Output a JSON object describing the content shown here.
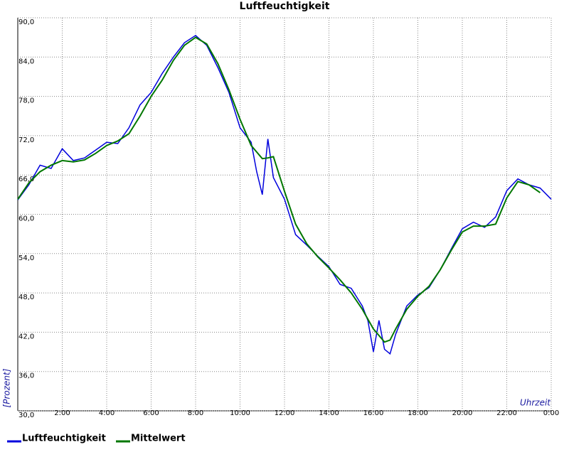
{
  "chart_data": {
    "type": "line",
    "title": "Luftfeuchtigkeit",
    "y_label": "[Prozent]",
    "x_label": "Uhrzeit",
    "xlim": [
      0,
      24
    ],
    "ylim": [
      30,
      90
    ],
    "xticks": [
      {
        "value": 2,
        "label": "2:00"
      },
      {
        "value": 4,
        "label": "4:00"
      },
      {
        "value": 6,
        "label": "6:00"
      },
      {
        "value": 8,
        "label": "8:00"
      },
      {
        "value": 10,
        "label": "10:00"
      },
      {
        "value": 12,
        "label": "12:00"
      },
      {
        "value": 14,
        "label": "14:00"
      },
      {
        "value": 16,
        "label": "16:00"
      },
      {
        "value": 18,
        "label": "18:00"
      },
      {
        "value": 20,
        "label": "20:00"
      },
      {
        "value": 22,
        "label": "22:00"
      },
      {
        "value": 24,
        "label": "0:00"
      }
    ],
    "yticks": [
      {
        "value": 30,
        "label": "30,0"
      },
      {
        "value": 36,
        "label": "36,0"
      },
      {
        "value": 42,
        "label": "42,0"
      },
      {
        "value": 48,
        "label": "48,0"
      },
      {
        "value": 54,
        "label": "54,0"
      },
      {
        "value": 60,
        "label": "60,0"
      },
      {
        "value": 66,
        "label": "66,0"
      },
      {
        "value": 72,
        "label": "72,0"
      },
      {
        "value": 78,
        "label": "78,0"
      },
      {
        "value": 84,
        "label": "84,0"
      },
      {
        "value": 90,
        "label": "90,0"
      }
    ],
    "grid": true,
    "x": [
      0,
      0.5,
      1,
      1.5,
      2,
      2.5,
      3,
      3.5,
      4,
      4.5,
      5,
      5.5,
      6,
      6.5,
      7,
      7.5,
      8,
      8.5,
      9,
      9.5,
      10,
      10.5,
      10.75,
      11,
      11.25,
      11.5,
      12,
      12.5,
      13,
      13.5,
      14,
      14.5,
      15,
      15.5,
      15.75,
      16,
      16.25,
      16.5,
      16.75,
      17,
      17.5,
      18,
      18.5,
      19,
      19.5,
      20,
      20.5,
      21,
      21.5,
      22,
      22.5,
      23,
      23.5,
      24
    ],
    "series": [
      {
        "name": "Luftfeuchtigkeit",
        "color": "#0000dd",
        "values": [
          62.2,
          64.5,
          67.5,
          67,
          70,
          68.2,
          68.6,
          69.8,
          71,
          70.8,
          73.2,
          76.7,
          78.6,
          81.5,
          84,
          86.2,
          87.3,
          85.8,
          82.4,
          78.6,
          73.2,
          71,
          66.5,
          63,
          71.5,
          65.6,
          62.3,
          56.9,
          55.3,
          53.6,
          52,
          49.3,
          48.7,
          46,
          43.8,
          39,
          43.8,
          39.4,
          38.7,
          41.7,
          46,
          47.7,
          48.8,
          51.5,
          54.7,
          57.8,
          58.8,
          58,
          59.6,
          63.6,
          65.4,
          64.5,
          64,
          62.3
        ]
      },
      {
        "name": "Mittelwert",
        "color": "#007700",
        "values": [
          62.3,
          64.8,
          66.5,
          67.5,
          68.2,
          68,
          68.3,
          69.3,
          70.5,
          71.2,
          72.3,
          75,
          78,
          80.5,
          83.5,
          85.8,
          87,
          86,
          83,
          79,
          74.5,
          70.5,
          69.5,
          68.5,
          68.6,
          68.8,
          63.5,
          58.5,
          55.5,
          53.5,
          51.8,
          50,
          48,
          45.5,
          44,
          42.5,
          41.5,
          40.5,
          40.8,
          42.5,
          45.5,
          47.5,
          49,
          51.5,
          54.5,
          57.3,
          58.2,
          58.2,
          58.5,
          62.5,
          65,
          64.5,
          63.3,
          null
        ]
      }
    ]
  }
}
